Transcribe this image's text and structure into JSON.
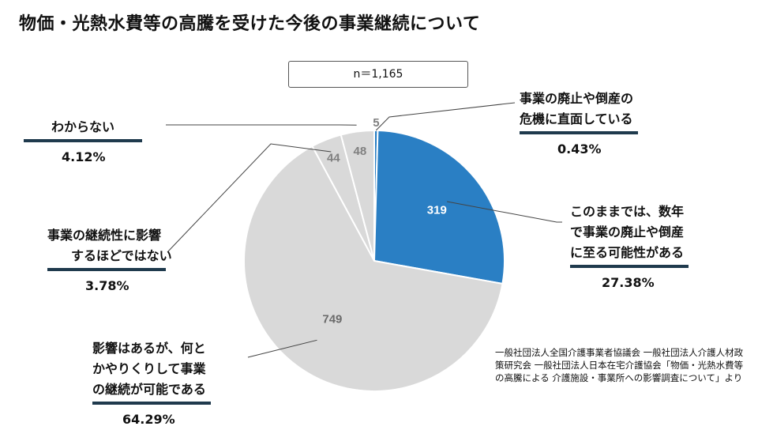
{
  "title": "物価・光熱水費等の高騰を受けた今後の事業継続について",
  "sample": "n＝1,165",
  "source": "一般社団法人全国介護事業者協議会 一般社団法人介護人材政策研究会 一般社団法人日本在宅介護協会「物価・光熱水費等の高騰による 介護施設・事業所への影響調査について」より",
  "colors": {
    "highlight": "#2a7fc4",
    "other": "#d9d9d9",
    "bar": "#1f3a4d"
  },
  "labels": {
    "abolish": {
      "lines": [
        "事業の廃止や倒産の",
        "危機に直面している"
      ],
      "pct": "0.43%"
    },
    "few_years": {
      "lines": [
        "このままでは、数年",
        "で事業の廃止や倒産",
        "に至る可能性がある"
      ],
      "pct": "27.38%"
    },
    "manage": {
      "lines": [
        "影響はあるが、何と",
        "かやりくりして事業",
        "の継続が可能である"
      ],
      "pct": "64.29%"
    },
    "no_effect": {
      "lines": [
        "事業の継続性に影響",
        "するほどではない"
      ],
      "pct": "3.78%"
    },
    "unknown": {
      "lines": [
        "わからない"
      ],
      "pct": "4.12%"
    }
  },
  "chart_data": {
    "type": "pie",
    "title": "物価・光熱水費等の高騰を受けた今後の事業継続について",
    "n": 1165,
    "slices": [
      {
        "label": "事業の廃止や倒産の危機に直面している",
        "value": 5,
        "percent": 0.43,
        "color": "#2a7fc4"
      },
      {
        "label": "このままでは、数年で事業の廃止や倒産に至る可能性がある",
        "value": 319,
        "percent": 27.38,
        "color": "#2a7fc4"
      },
      {
        "label": "影響はあるが、何とかやりくりして事業の継続が可能である",
        "value": 749,
        "percent": 64.29,
        "color": "#d9d9d9"
      },
      {
        "label": "事業の継続性に影響するほどではない",
        "value": 44,
        "percent": 3.78,
        "color": "#d9d9d9"
      },
      {
        "label": "わからない",
        "value": 48,
        "percent": 4.12,
        "color": "#d9d9d9"
      }
    ]
  }
}
